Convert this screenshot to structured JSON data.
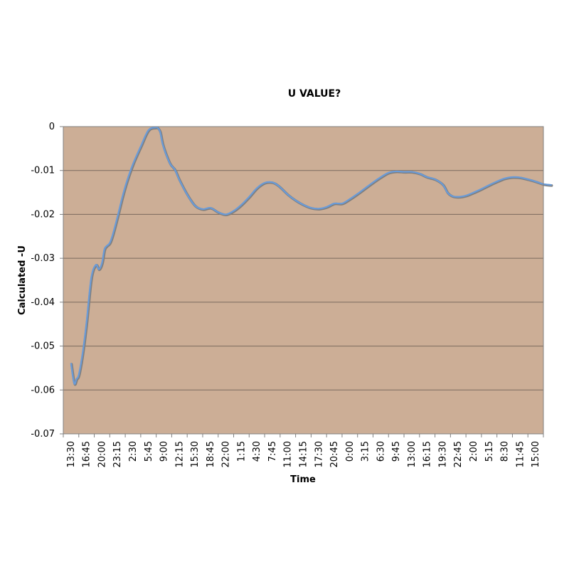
{
  "chart_data": {
    "type": "line",
    "title": "U VALUE?",
    "xlabel": "Time",
    "ylabel": "Calculated -U",
    "ylim": [
      -0.07,
      0
    ],
    "yticks": [
      0,
      -0.01,
      -0.02,
      -0.03,
      -0.04,
      -0.05,
      -0.06,
      -0.07
    ],
    "ytick_labels": [
      "0",
      "-0.01",
      "-0.02",
      "-0.03",
      "-0.04",
      "-0.05",
      "-0.06",
      "-0.07"
    ],
    "xtick_labels": [
      "13:30",
      "16:45",
      "20:00",
      "23:15",
      "2:30",
      "5:45",
      "9:00",
      "12:15",
      "15:30",
      "18:45",
      "22:00",
      "1:15",
      "4:30",
      "7:45",
      "11:00",
      "14:15",
      "17:30",
      "20:45",
      "0:00",
      "3:15",
      "6:30",
      "9:45",
      "13:00",
      "16:15",
      "19:30",
      "22:45",
      "2:00",
      "5:15",
      "8:30",
      "11:45",
      "15:00"
    ],
    "grid": true,
    "legend": "none",
    "colors": {
      "plot_background": "#ccae96",
      "line": "#6a9bd8",
      "line_shadow": "#7f7f7f",
      "gridline": "#7a6a5e"
    },
    "series": [
      {
        "x": [
          0,
          0.2,
          0.35,
          0.5,
          0.75,
          1.0,
          1.3,
          1.6,
          1.8,
          2.0,
          2.15,
          2.3,
          2.5,
          2.7,
          3.0,
          3.3,
          3.6,
          4.0,
          4.5,
          5.0,
          5.5,
          5.6,
          5.75,
          5.9,
          6.1,
          6.4,
          6.7,
          7.0,
          7.5,
          8.0,
          8.5,
          9.0,
          9.5,
          10.0,
          10.5,
          11.0,
          11.5,
          12.0,
          12.5,
          13.0,
          13.4,
          14.0,
          14.5,
          15.0,
          15.5,
          16.0,
          16.5,
          17.0,
          17.5,
          18.0,
          18.5,
          19.0,
          19.5,
          20.0,
          20.5,
          21.0,
          21.5,
          22.0,
          22.5,
          23.0,
          23.5,
          24.0,
          24.3,
          24.6,
          25.0,
          25.5,
          26.0,
          26.5,
          27.0,
          27.5,
          28.0,
          28.5,
          29.0,
          29.5,
          30.0,
          30.5,
          31.0
        ],
        "y": [
          -0.054,
          -0.0585,
          -0.0575,
          -0.0565,
          -0.0515,
          -0.0445,
          -0.0345,
          -0.0315,
          -0.0325,
          -0.031,
          -0.028,
          -0.0272,
          -0.0265,
          -0.0245,
          -0.0205,
          -0.0162,
          -0.0125,
          -0.0085,
          -0.0045,
          -0.0008,
          -0.0002,
          -0.0003,
          -0.0012,
          -0.0038,
          -0.006,
          -0.0085,
          -0.0098,
          -0.0122,
          -0.0155,
          -0.018,
          -0.0188,
          -0.0185,
          -0.0195,
          -0.02,
          -0.0192,
          -0.0178,
          -0.016,
          -0.014,
          -0.0128,
          -0.0127,
          -0.0135,
          -0.0155,
          -0.0168,
          -0.0178,
          -0.0185,
          -0.0187,
          -0.0183,
          -0.0175,
          -0.0175,
          -0.0165,
          -0.0153,
          -0.014,
          -0.0127,
          -0.0115,
          -0.0105,
          -0.0102,
          -0.0103,
          -0.0103,
          -0.0107,
          -0.0115,
          -0.012,
          -0.0132,
          -0.015,
          -0.0158,
          -0.016,
          -0.0157,
          -0.015,
          -0.0142,
          -0.0133,
          -0.0125,
          -0.0118,
          -0.0115,
          -0.0116,
          -0.012,
          -0.0125,
          -0.0131,
          -0.0133
        ]
      }
    ]
  }
}
